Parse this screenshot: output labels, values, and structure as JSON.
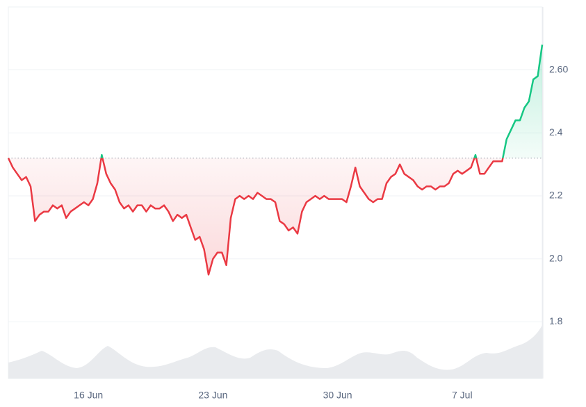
{
  "chart_data": {
    "type": "line",
    "categories": [
      null,
      null,
      null,
      null,
      null,
      null,
      null,
      null,
      null,
      null,
      null,
      null,
      null,
      null,
      null,
      null,
      null,
      null,
      "16 Jun",
      null,
      null,
      null,
      null,
      null,
      null,
      null,
      null,
      null,
      null,
      null,
      null,
      null,
      null,
      null,
      null,
      null,
      null,
      null,
      null,
      null,
      null,
      null,
      null,
      null,
      null,
      null,
      "23 Jun",
      null,
      null,
      null,
      null,
      null,
      null,
      null,
      null,
      null,
      null,
      null,
      null,
      null,
      null,
      null,
      null,
      null,
      null,
      null,
      null,
      null,
      null,
      null,
      null,
      null,
      null,
      null,
      "30 Jun",
      null,
      null,
      null,
      null,
      null,
      null,
      null,
      null,
      null,
      null,
      null,
      null,
      null,
      null,
      null,
      null,
      null,
      null,
      null,
      null,
      null,
      null,
      null,
      null,
      null,
      null,
      null,
      "7 Jul",
      null,
      null,
      null,
      null,
      null,
      null,
      null,
      null,
      null,
      null,
      null,
      null,
      null,
      null,
      null,
      null,
      null,
      null
    ],
    "values": [
      2.32,
      2.29,
      2.27,
      2.25,
      2.26,
      2.23,
      2.12,
      2.14,
      2.15,
      2.15,
      2.17,
      2.16,
      2.17,
      2.13,
      2.15,
      2.16,
      2.17,
      2.18,
      2.17,
      2.19,
      2.24,
      2.33,
      2.27,
      2.24,
      2.22,
      2.18,
      2.16,
      2.17,
      2.15,
      2.17,
      2.17,
      2.15,
      2.17,
      2.16,
      2.16,
      2.17,
      2.15,
      2.12,
      2.14,
      2.13,
      2.14,
      2.1,
      2.06,
      2.07,
      2.03,
      1.95,
      2.0,
      2.02,
      2.02,
      1.98,
      2.13,
      2.19,
      2.2,
      2.19,
      2.2,
      2.19,
      2.21,
      2.2,
      2.19,
      2.19,
      2.18,
      2.12,
      2.11,
      2.09,
      2.1,
      2.08,
      2.15,
      2.18,
      2.19,
      2.2,
      2.19,
      2.2,
      2.19,
      2.19,
      2.19,
      2.19,
      2.18,
      2.23,
      2.29,
      2.23,
      2.21,
      2.19,
      2.18,
      2.19,
      2.19,
      2.24,
      2.26,
      2.27,
      2.3,
      2.27,
      2.26,
      2.25,
      2.23,
      2.22,
      2.23,
      2.23,
      2.22,
      2.23,
      2.23,
      2.24,
      2.27,
      2.28,
      2.27,
      2.28,
      2.29,
      2.33,
      2.27,
      2.27,
      2.29,
      2.31,
      2.31,
      2.31,
      2.38,
      2.41,
      2.44,
      2.44,
      2.48,
      2.5,
      2.57,
      2.58,
      2.68
    ],
    "color_up": "#16c784",
    "color_down": "#ea3943",
    "ylim": [
      1.62,
      2.8
    ],
    "yticks": [
      1.8,
      {
        "value": 2,
        "label": "2.0"
      },
      2.2,
      2.4,
      {
        "value": 2.6,
        "label": "2.60"
      }
    ],
    "grid": true
  }
}
